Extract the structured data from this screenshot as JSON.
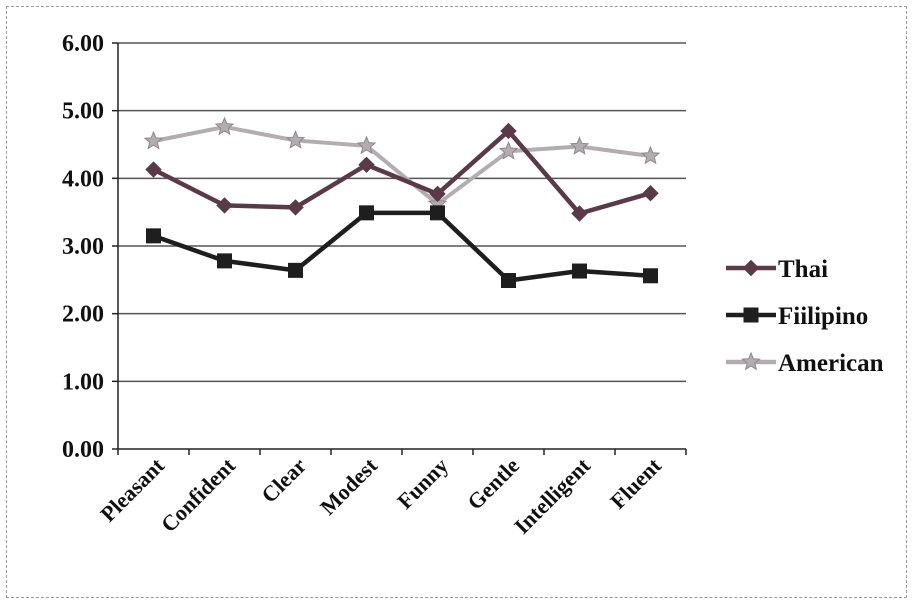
{
  "chart_data": {
    "type": "line",
    "title": "",
    "xlabel": "",
    "ylabel": "",
    "categories": [
      "Pleasant",
      "Confident",
      "Clear",
      "Modest",
      "Funny",
      "Gentle",
      "Intelligent",
      "Fluent"
    ],
    "ylim": [
      0,
      6
    ],
    "yticks": [
      "0.00",
      "1.00",
      "2.00",
      "3.00",
      "4.00",
      "5.00",
      "6.00"
    ],
    "grid": true,
    "legend_position": "right",
    "series": [
      {
        "name": "Thai",
        "values": [
          4.13,
          3.6,
          3.57,
          4.2,
          3.77,
          4.7,
          3.48,
          3.78
        ],
        "color": "#5a3a48",
        "marker": "diamond"
      },
      {
        "name": "Fiilipino",
        "values": [
          3.15,
          2.78,
          2.64,
          3.49,
          3.49,
          2.49,
          2.63,
          2.56
        ],
        "color": "#1e1e1e",
        "marker": "square"
      },
      {
        "name": "American",
        "values": [
          4.55,
          4.76,
          4.56,
          4.48,
          3.62,
          4.4,
          4.47,
          4.33
        ],
        "color": "#b3adb1",
        "marker": "star"
      }
    ]
  }
}
